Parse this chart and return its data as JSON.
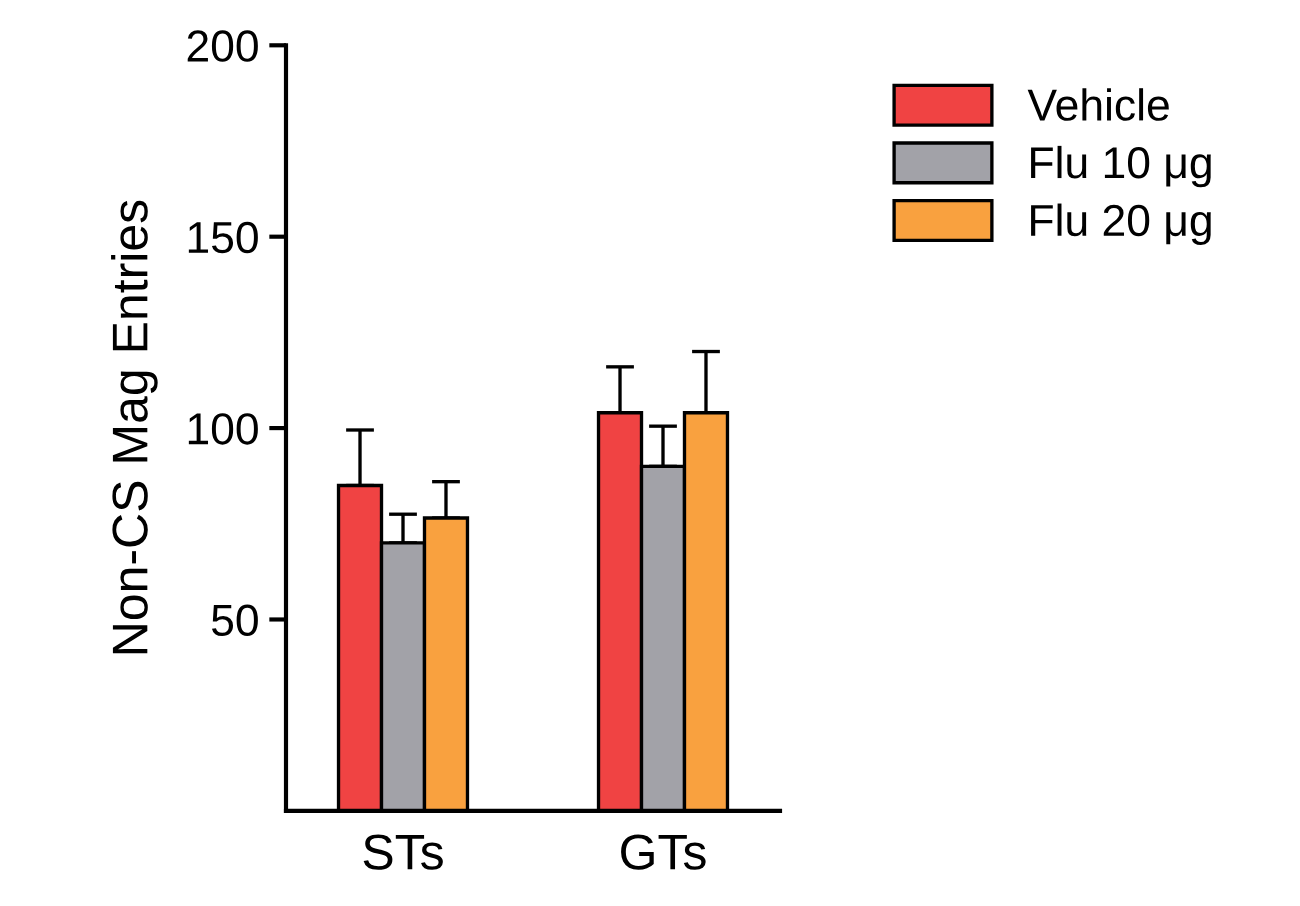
{
  "chart_data": {
    "type": "bar",
    "ylabel": "Non-CS Mag Entries",
    "categories": [
      "STs",
      "GTs"
    ],
    "series": [
      {
        "name": "Vehicle",
        "color": "#f04343",
        "values": [
          85,
          104
        ],
        "errors": [
          [
            85,
            99.5
          ],
          [
            104,
            116
          ]
        ]
      },
      {
        "name": "Flu 10 μg",
        "color": "#a2a2a8",
        "values": [
          70,
          90
        ],
        "errors": [
          [
            70,
            77.5
          ],
          [
            90,
            100.5
          ]
        ]
      },
      {
        "name": "Flu 20 μg",
        "color": "#f9a13f",
        "values": [
          76.5,
          104
        ],
        "errors": [
          [
            76.5,
            86
          ],
          [
            104,
            120
          ]
        ]
      }
    ],
    "ylim": [
      0,
      200
    ],
    "yticks": [
      50,
      100,
      150,
      200
    ],
    "legend": "top right",
    "grid": false
  }
}
